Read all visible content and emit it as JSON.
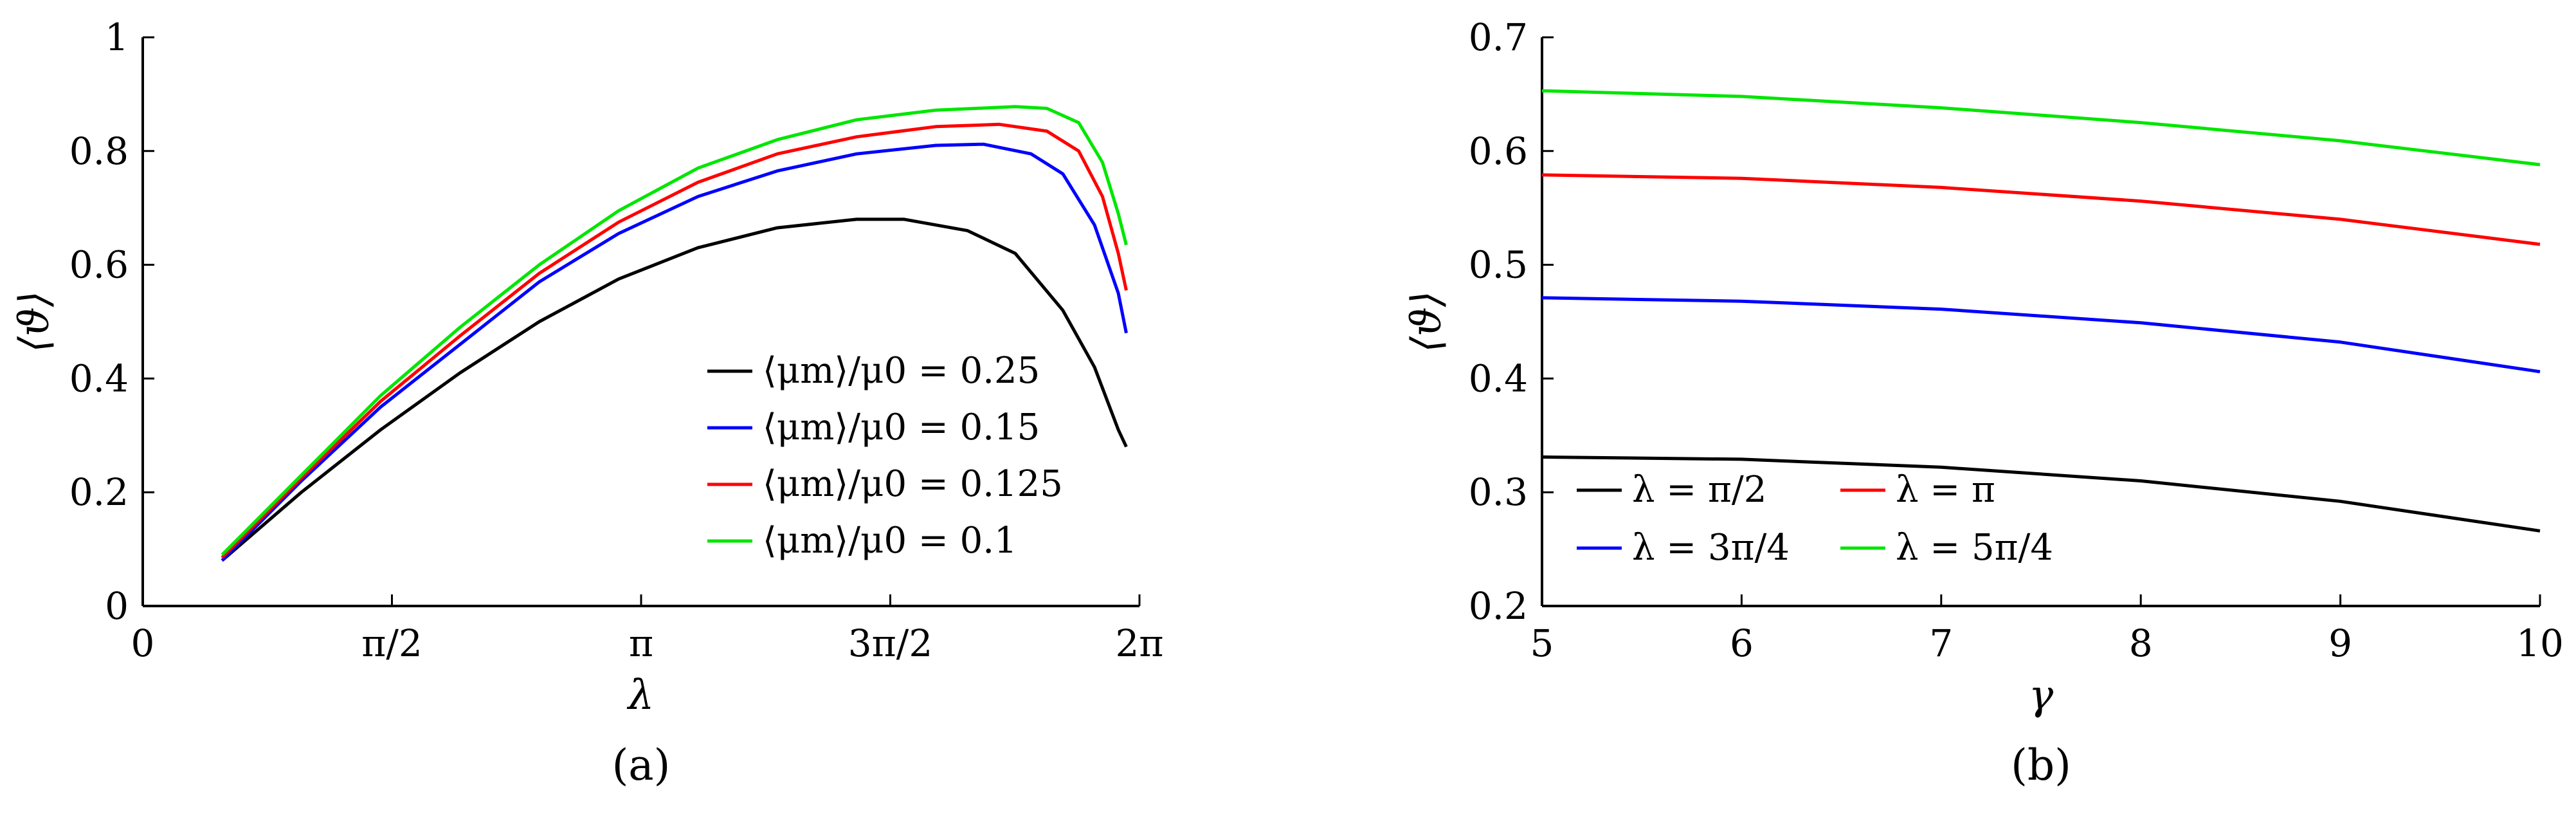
{
  "chart_data": [
    {
      "type": "line",
      "panel_label": "(a)",
      "xlabel": "λ",
      "ylabel": "⟨ϑ⟩",
      "xlim": [
        0,
        6.2832
      ],
      "ylim": [
        0,
        1
      ],
      "x_ticks": [
        {
          "value": 0,
          "label": "0"
        },
        {
          "value": 1.5708,
          "label": "π/2"
        },
        {
          "value": 3.1416,
          "label": "π"
        },
        {
          "value": 4.7124,
          "label": "3π/2"
        },
        {
          "value": 6.2832,
          "label": "2π"
        }
      ],
      "y_ticks": [
        {
          "value": 0,
          "label": "0"
        },
        {
          "value": 0.2,
          "label": "0.2"
        },
        {
          "value": 0.4,
          "label": "0.4"
        },
        {
          "value": 0.6,
          "label": "0.6"
        },
        {
          "value": 0.8,
          "label": "0.8"
        },
        {
          "value": 1,
          "label": "1"
        }
      ],
      "legend_position": "bottom-right",
      "series": [
        {
          "name": "⟨μm⟩/μ0 = 0.25",
          "color": "#000000",
          "points": [
            [
              0.5,
              0.08
            ],
            [
              1.0,
              0.2
            ],
            [
              1.5,
              0.31
            ],
            [
              2.0,
              0.41
            ],
            [
              2.5,
              0.5
            ],
            [
              3.0,
              0.575
            ],
            [
              3.5,
              0.63
            ],
            [
              4.0,
              0.665
            ],
            [
              4.5,
              0.68
            ],
            [
              4.8,
              0.68
            ],
            [
              5.2,
              0.66
            ],
            [
              5.5,
              0.62
            ],
            [
              5.8,
              0.52
            ],
            [
              6.0,
              0.42
            ],
            [
              6.15,
              0.31
            ],
            [
              6.2,
              0.28
            ]
          ]
        },
        {
          "name": "⟨μm⟩/μ0 = 0.15",
          "color": "#0000ff",
          "points": [
            [
              0.5,
              0.08
            ],
            [
              1.0,
              0.22
            ],
            [
              1.5,
              0.35
            ],
            [
              2.0,
              0.46
            ],
            [
              2.5,
              0.57
            ],
            [
              3.0,
              0.655
            ],
            [
              3.5,
              0.72
            ],
            [
              4.0,
              0.765
            ],
            [
              4.5,
              0.795
            ],
            [
              5.0,
              0.81
            ],
            [
              5.3,
              0.812
            ],
            [
              5.6,
              0.795
            ],
            [
              5.8,
              0.76
            ],
            [
              6.0,
              0.67
            ],
            [
              6.15,
              0.55
            ],
            [
              6.2,
              0.48
            ]
          ]
        },
        {
          "name": "⟨μm⟩/μ0 = 0.125",
          "color": "#ff0000",
          "points": [
            [
              0.5,
              0.085
            ],
            [
              1.0,
              0.225
            ],
            [
              1.5,
              0.36
            ],
            [
              2.0,
              0.475
            ],
            [
              2.5,
              0.585
            ],
            [
              3.0,
              0.675
            ],
            [
              3.5,
              0.745
            ],
            [
              4.0,
              0.795
            ],
            [
              4.5,
              0.825
            ],
            [
              5.0,
              0.843
            ],
            [
              5.4,
              0.847
            ],
            [
              5.7,
              0.835
            ],
            [
              5.9,
              0.8
            ],
            [
              6.05,
              0.72
            ],
            [
              6.15,
              0.62
            ],
            [
              6.2,
              0.555
            ]
          ]
        },
        {
          "name": "⟨μm⟩/μ0 = 0.1",
          "color": "#00e600",
          "points": [
            [
              0.5,
              0.09
            ],
            [
              1.0,
              0.23
            ],
            [
              1.5,
              0.37
            ],
            [
              2.0,
              0.49
            ],
            [
              2.5,
              0.6
            ],
            [
              3.0,
              0.695
            ],
            [
              3.5,
              0.77
            ],
            [
              4.0,
              0.82
            ],
            [
              4.5,
              0.855
            ],
            [
              5.0,
              0.872
            ],
            [
              5.5,
              0.878
            ],
            [
              5.7,
              0.875
            ],
            [
              5.9,
              0.85
            ],
            [
              6.05,
              0.78
            ],
            [
              6.15,
              0.69
            ],
            [
              6.2,
              0.635
            ]
          ]
        }
      ]
    },
    {
      "type": "line",
      "panel_label": "(b)",
      "xlabel": "γ",
      "ylabel": "⟨ϑ⟩",
      "xlim": [
        5,
        10
      ],
      "ylim": [
        0.2,
        0.7
      ],
      "x_ticks": [
        {
          "value": 5,
          "label": "5"
        },
        {
          "value": 6,
          "label": "6"
        },
        {
          "value": 7,
          "label": "7"
        },
        {
          "value": 8,
          "label": "8"
        },
        {
          "value": 9,
          "label": "9"
        },
        {
          "value": 10,
          "label": "10"
        }
      ],
      "y_ticks": [
        {
          "value": 0.2,
          "label": "0.2"
        },
        {
          "value": 0.3,
          "label": "0.3"
        },
        {
          "value": 0.4,
          "label": "0.4"
        },
        {
          "value": 0.5,
          "label": "0.5"
        },
        {
          "value": 0.6,
          "label": "0.6"
        },
        {
          "value": 0.7,
          "label": "0.7"
        }
      ],
      "legend_position": "bottom-left",
      "series": [
        {
          "name": "λ = π/2",
          "color": "#000000",
          "points": [
            [
              5,
              0.331
            ],
            [
              6,
              0.329
            ],
            [
              7,
              0.322
            ],
            [
              8,
              0.31
            ],
            [
              9,
              0.292
            ],
            [
              10,
              0.266
            ]
          ]
        },
        {
          "name": "λ = 3π/4",
          "color": "#0000ff",
          "points": [
            [
              5,
              0.471
            ],
            [
              6,
              0.468
            ],
            [
              7,
              0.461
            ],
            [
              8,
              0.449
            ],
            [
              9,
              0.432
            ],
            [
              10,
              0.406
            ]
          ]
        },
        {
          "name": "λ = π",
          "color": "#ff0000",
          "points": [
            [
              5,
              0.579
            ],
            [
              6,
              0.576
            ],
            [
              7,
              0.568
            ],
            [
              8,
              0.556
            ],
            [
              9,
              0.54
            ],
            [
              10,
              0.518
            ]
          ]
        },
        {
          "name": "λ = 5π/4",
          "color": "#00e600",
          "points": [
            [
              5,
              0.653
            ],
            [
              6,
              0.648
            ],
            [
              7,
              0.638
            ],
            [
              8,
              0.625
            ],
            [
              9,
              0.609
            ],
            [
              10,
              0.588
            ]
          ]
        }
      ]
    }
  ]
}
